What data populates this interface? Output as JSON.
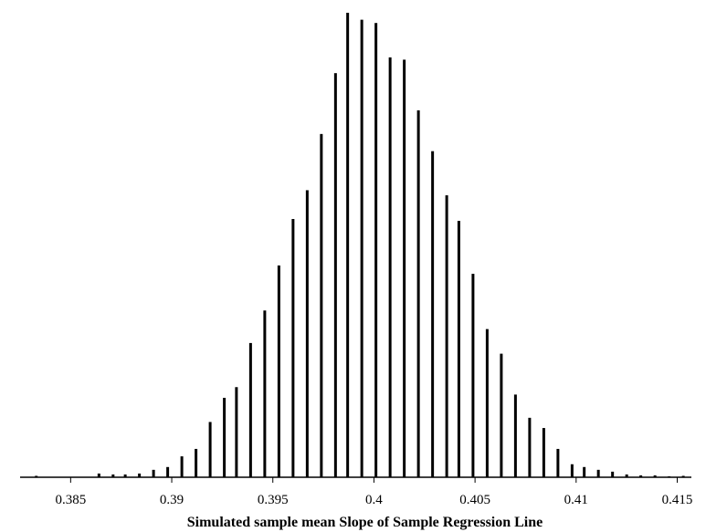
{
  "chart_data": {
    "type": "bar",
    "title": "",
    "xlabel": "Simulated sample mean Slope of Sample Regression Line",
    "ylabel": "",
    "xlim": [
      0.3825,
      0.4157
    ],
    "ylim": [
      0,
      100
    ],
    "grid": false,
    "legend": "none",
    "bar_color": "#000000",
    "xticks": [
      {
        "value": 0.385,
        "label": "0.385"
      },
      {
        "value": 0.39,
        "label": "0.39"
      },
      {
        "value": 0.395,
        "label": "0.395"
      },
      {
        "value": 0.4,
        "label": "0.4"
      },
      {
        "value": 0.405,
        "label": "0.405"
      },
      {
        "value": 0.41,
        "label": "0.41"
      },
      {
        "value": 0.415,
        "label": "0.415"
      }
    ],
    "x": [
      0.3833,
      0.3864,
      0.3871,
      0.3877,
      0.3884,
      0.3891,
      0.3898,
      0.3905,
      0.3912,
      0.3919,
      0.3926,
      0.3932,
      0.3939,
      0.3946,
      0.3953,
      0.396,
      0.3967,
      0.3974,
      0.3981,
      0.3987,
      0.3994,
      0.4001,
      0.4008,
      0.4015,
      0.4022,
      0.4029,
      0.4036,
      0.4042,
      0.4049,
      0.4056,
      0.4063,
      0.407,
      0.4077,
      0.4084,
      0.4091,
      0.4098,
      0.4104,
      0.4111,
      0.4118,
      0.4125,
      0.4132,
      0.4139,
      0.4146,
      0.4153
    ],
    "values": [
      0.3,
      0.8,
      0.6,
      0.6,
      0.8,
      1.6,
      2.2,
      4.5,
      6.1,
      11.9,
      17.1,
      19.4,
      28.9,
      35.9,
      45.6,
      55.6,
      61.8,
      73.9,
      87.0,
      100.0,
      98.5,
      97.8,
      90.4,
      89.9,
      79.0,
      70.2,
      60.7,
      55.2,
      43.8,
      31.9,
      26.6,
      17.8,
      12.8,
      10.6,
      6.1,
      2.8,
      2.2,
      1.6,
      1.2,
      0.6,
      0.4,
      0.4,
      0.2,
      0.3
    ]
  }
}
